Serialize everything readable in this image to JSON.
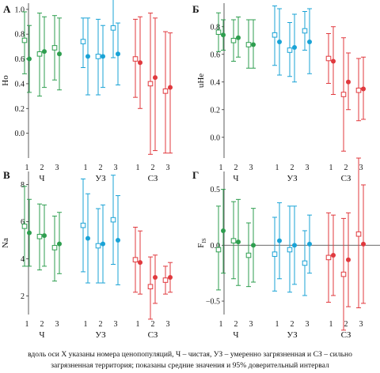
{
  "colors": {
    "green": "#2e9e4f",
    "blue": "#1aa3d6",
    "red": "#e0393e",
    "axis": "#333333",
    "zero_line": "#555555"
  },
  "legend_note": {
    "open_square": "",
    "filled_circle": ""
  },
  "caption": {
    "line1": "вдоль оси X указаны номера ценопопуляций, Ч – чистая, УЗ – умеренно загрязненная и СЗ – сильно",
    "line2": "загрязненная территория; показаны средние значения и 95% доверительный интервал"
  },
  "chart_data": [
    {
      "panel_label": "А",
      "type": "scatter",
      "title": "",
      "ylabel": "Ho",
      "ylim": [
        -0.2,
        1.05
      ],
      "yticks": [
        "0.0",
        "0.2",
        "0.4",
        "0.6",
        "0.8",
        "1.0"
      ],
      "ytick_values": [
        0,
        0.2,
        0.4,
        0.6,
        0.8,
        1.0
      ],
      "zero_line": false,
      "groups": [
        {
          "name": "Ч",
          "color": "green",
          "points": [
            {
              "x": "1",
              "open": {
                "value": 0.75,
                "low": 0.48,
                "high": 0.98
              },
              "filled": {
                "value": 0.6,
                "low": 0.33,
                "high": 0.87
              }
            },
            {
              "x": "2",
              "open": {
                "value": 0.64,
                "low": 0.3,
                "high": 0.97
              },
              "filled": {
                "value": 0.66,
                "low": 0.37,
                "high": 0.94
              }
            },
            {
              "x": "3",
              "open": {
                "value": 0.69,
                "low": 0.43,
                "high": 0.95
              },
              "filled": {
                "value": 0.64,
                "low": 0.35,
                "high": 0.93
              }
            }
          ]
        },
        {
          "name": "УЗ",
          "color": "blue",
          "points": [
            {
              "x": "1",
              "open": {
                "value": 0.74,
                "low": 0.53,
                "high": 0.93
              },
              "filled": {
                "value": 0.62,
                "low": 0.31,
                "high": 0.93
              }
            },
            {
              "x": "2",
              "open": {
                "value": 0.62,
                "low": 0.31,
                "high": 0.92
              },
              "filled": {
                "value": 0.62,
                "low": 0.37,
                "high": 0.87
              }
            },
            {
              "x": "3",
              "open": {
                "value": 0.85,
                "low": 0.61,
                "high": 1.09
              },
              "filled": {
                "value": 0.64,
                "low": 0.39,
                "high": 0.89
              }
            }
          ]
        },
        {
          "name": "СЗ",
          "color": "red",
          "points": [
            {
              "x": "1",
              "open": {
                "value": 0.6,
                "low": 0.29,
                "high": 0.92
              },
              "filled": {
                "value": 0.57,
                "low": 0.2,
                "high": 0.94
              }
            },
            {
              "x": "2",
              "open": {
                "value": 0.4,
                "low": -0.17,
                "high": 0.97
              },
              "filled": {
                "value": 0.45,
                "low": -0.14,
                "high": 0.93
              }
            },
            {
              "x": "3",
              "open": {
                "value": 0.34,
                "low": -0.16,
                "high": 0.82
              },
              "filled": {
                "value": 0.37,
                "low": -0.16,
                "high": 0.81
              }
            }
          ]
        }
      ]
    },
    {
      "panel_label": "Б",
      "type": "scatter",
      "title": "",
      "ylabel": "uHe",
      "ylim": [
        -0.15,
        0.97
      ],
      "yticks": [
        "0.0",
        "0.2",
        "0.4",
        "0.6",
        "0.8"
      ],
      "ytick_values": [
        0,
        0.2,
        0.4,
        0.6,
        0.8
      ],
      "zero_line": false,
      "groups": [
        {
          "name": "Ч",
          "color": "green",
          "points": [
            {
              "x": "1",
              "open": {
                "value": 0.76,
                "low": 0.62,
                "high": 0.9
              },
              "filled": {
                "value": 0.74,
                "low": 0.63,
                "high": 0.85
              }
            },
            {
              "x": "2",
              "open": {
                "value": 0.7,
                "low": 0.55,
                "high": 0.85
              },
              "filled": {
                "value": 0.72,
                "low": 0.58,
                "high": 0.87
              }
            },
            {
              "x": "3",
              "open": {
                "value": 0.67,
                "low": 0.5,
                "high": 0.85
              },
              "filled": {
                "value": 0.67,
                "low": 0.5,
                "high": 0.85
              }
            }
          ]
        },
        {
          "name": "УЗ",
          "color": "blue",
          "points": [
            {
              "x": "1",
              "open": {
                "value": 0.74,
                "low": 0.52,
                "high": 0.95
              },
              "filled": {
                "value": 0.69,
                "low": 0.45,
                "high": 0.93
              }
            },
            {
              "x": "2",
              "open": {
                "value": 0.63,
                "low": 0.44,
                "high": 0.83
              },
              "filled": {
                "value": 0.65,
                "low": 0.4,
                "high": 0.89
              }
            },
            {
              "x": "3",
              "open": {
                "value": 0.77,
                "low": 0.63,
                "high": 0.91
              },
              "filled": {
                "value": 0.69,
                "low": 0.46,
                "high": 0.93
              }
            }
          ]
        },
        {
          "name": "СЗ",
          "color": "red",
          "points": [
            {
              "x": "1",
              "open": {
                "value": 0.57,
                "low": 0.39,
                "high": 0.75
              },
              "filled": {
                "value": 0.55,
                "low": 0.31,
                "high": 0.8
              }
            },
            {
              "x": "2",
              "open": {
                "value": 0.31,
                "low": -0.1,
                "high": 0.72
              },
              "filled": {
                "value": 0.4,
                "low": 0.2,
                "high": 0.61
              }
            },
            {
              "x": "3",
              "open": {
                "value": 0.34,
                "low": 0.12,
                "high": 0.57
              },
              "filled": {
                "value": 0.35,
                "low": 0.13,
                "high": 0.58
              }
            }
          ]
        }
      ]
    },
    {
      "panel_label": "В",
      "type": "scatter",
      "title": "",
      "ylabel": "Na",
      "ylim": [
        1,
        8.7
      ],
      "yticks": [
        "2",
        "4",
        "6",
        "8"
      ],
      "ytick_values": [
        2,
        4,
        6,
        8
      ],
      "zero_line": false,
      "groups": [
        {
          "name": "Ч",
          "color": "green",
          "points": [
            {
              "x": "1",
              "open": {
                "value": 5.75,
                "low": 3.6,
                "high": 7.9
              },
              "filled": {
                "value": 5.4,
                "low": 3.6,
                "high": 7.2
              }
            },
            {
              "x": "2",
              "open": {
                "value": 5.2,
                "low": 3.4,
                "high": 6.95
              },
              "filled": {
                "value": 5.25,
                "low": 3.6,
                "high": 6.9
              }
            },
            {
              "x": "3",
              "open": {
                "value": 4.6,
                "low": 2.8,
                "high": 6.3
              },
              "filled": {
                "value": 4.8,
                "low": 3.2,
                "high": 6.5
              }
            }
          ]
        },
        {
          "name": "УЗ",
          "color": "blue",
          "points": [
            {
              "x": "1",
              "open": {
                "value": 5.8,
                "low": 3.3,
                "high": 8.3
              },
              "filled": {
                "value": 5.1,
                "low": 2.7,
                "high": 7.5
              }
            },
            {
              "x": "2",
              "open": {
                "value": 4.7,
                "low": 2.7,
                "high": 6.7
              },
              "filled": {
                "value": 4.8,
                "low": 2.7,
                "high": 6.9
              }
            },
            {
              "x": "3",
              "open": {
                "value": 6.1,
                "low": 3.7,
                "high": 8.5
              },
              "filled": {
                "value": 5.0,
                "low": 2.6,
                "high": 7.4
              }
            }
          ]
        },
        {
          "name": "СЗ",
          "color": "red",
          "points": [
            {
              "x": "1",
              "open": {
                "value": 3.95,
                "low": 2.2,
                "high": 5.7
              },
              "filled": {
                "value": 3.8,
                "low": 2.1,
                "high": 5.5
              }
            },
            {
              "x": "2",
              "open": {
                "value": 2.5,
                "low": 0.75,
                "high": 4.1
              },
              "filled": {
                "value": 3.0,
                "low": 1.6,
                "high": 4.2
              }
            },
            {
              "x": "3",
              "open": {
                "value": 2.85,
                "low": 2.1,
                "high": 3.6
              },
              "filled": {
                "value": 3.0,
                "low": 2.2,
                "high": 3.8
              }
            }
          ]
        }
      ]
    },
    {
      "panel_label": "Г",
      "type": "scatter",
      "title": "",
      "ylabel": "F_IS",
      "ylim": [
        -0.62,
        0.66
      ],
      "yticks": [
        "−0.5",
        "0.0",
        "0.5"
      ],
      "ytick_values": [
        -0.5,
        0,
        0.5
      ],
      "zero_line": true,
      "groups": [
        {
          "name": "Ч",
          "color": "green",
          "points": [
            {
              "x": "1",
              "open": {
                "value": -0.04,
                "low": -0.4,
                "high": 0.35
              },
              "filled": {
                "value": 0.13,
                "low": -0.25,
                "high": 0.5
              }
            },
            {
              "x": "2",
              "open": {
                "value": 0.04,
                "low": -0.3,
                "high": 0.39
              },
              "filled": {
                "value": 0.03,
                "low": -0.36,
                "high": 0.41
              }
            },
            {
              "x": "3",
              "open": {
                "value": -0.09,
                "low": -0.37,
                "high": 0.2
              },
              "filled": {
                "value": 0.0,
                "low": -0.33,
                "high": 0.33
              }
            }
          ]
        },
        {
          "name": "УЗ",
          "color": "blue",
          "points": [
            {
              "x": "1",
              "open": {
                "value": -0.08,
                "low": -0.41,
                "high": 0.25
              },
              "filled": {
                "value": 0.04,
                "low": -0.3,
                "high": 0.38
              }
            },
            {
              "x": "2",
              "open": {
                "value": -0.04,
                "low": -0.42,
                "high": 0.35
              },
              "filled": {
                "value": 0.0,
                "low": -0.35,
                "high": 0.35
              }
            },
            {
              "x": "3",
              "open": {
                "value": -0.16,
                "low": -0.45,
                "high": 0.13
              },
              "filled": {
                "value": 0.01,
                "low": -0.25,
                "high": 0.27
              }
            }
          ]
        },
        {
          "name": "СЗ",
          "color": "red",
          "points": [
            {
              "x": "1",
              "open": {
                "value": -0.11,
                "low": -0.51,
                "high": 0.29
              },
              "filled": {
                "value": -0.09,
                "low": -0.45,
                "high": 0.27
              }
            },
            {
              "x": "2",
              "open": {
                "value": -0.26,
                "low": -0.76,
                "high": 0.24
              },
              "filled": {
                "value": -0.13,
                "low": -0.55,
                "high": 0.29
              }
            },
            {
              "x": "3",
              "open": {
                "value": 0.1,
                "low": -0.56,
                "high": 0.78
              },
              "filled": {
                "value": 0.01,
                "low": -0.52,
                "high": 0.54
              }
            }
          ]
        }
      ]
    }
  ]
}
